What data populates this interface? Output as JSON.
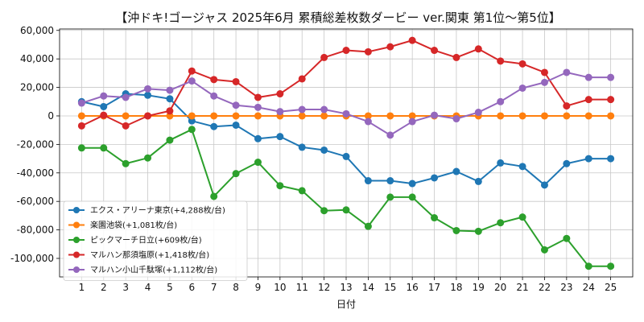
{
  "chart_data": {
    "type": "line",
    "title": "【沖ドキ!ゴージャス 2025年6月 累積総差枚数ダービー ver.関東 第1位～第5位】",
    "xlabel": "日付",
    "ylabel": "",
    "x": [
      1,
      2,
      3,
      4,
      5,
      6,
      7,
      8,
      9,
      10,
      11,
      12,
      13,
      14,
      15,
      16,
      17,
      18,
      19,
      20,
      21,
      22,
      23,
      24,
      25
    ],
    "xlim": [
      0,
      26
    ],
    "ylim": [
      -113000,
      61000
    ],
    "yticks": [
      60000,
      40000,
      20000,
      0,
      -20000,
      -40000,
      -60000,
      -80000,
      -100000
    ],
    "ytick_labels": [
      "60,000",
      "40,000",
      "20,000",
      "0",
      "-20,000",
      "-40,000",
      "-60,000",
      "-80,000",
      "-100,000"
    ],
    "xtick_labels": [
      "1",
      "2",
      "3",
      "4",
      "5",
      "6",
      "7",
      "8",
      "9",
      "10",
      "11",
      "12",
      "13",
      "14",
      "15",
      "16",
      "17",
      "18",
      "19",
      "20",
      "21",
      "22",
      "23",
      "24",
      "25"
    ],
    "grid": true,
    "legend_position": "bottom-left",
    "series": [
      {
        "name": "エクス・アリーナ東京(+4,288枚/台)",
        "color": "#1f77b4",
        "values": [
          10000,
          6500,
          15500,
          14500,
          12000,
          -3500,
          -7500,
          -6500,
          -16000,
          -14500,
          -22000,
          -24000,
          -28500,
          -45500,
          -45500,
          -47500,
          -43500,
          -39000,
          -46000,
          -33000,
          -35500,
          -48500,
          -33500,
          -30000,
          -30000
        ]
      },
      {
        "name": "楽園池袋(+1,081枚/台)",
        "color": "#ff7f0e",
        "values": [
          0,
          0,
          0,
          0,
          0,
          0,
          0,
          0,
          0,
          0,
          0,
          0,
          0,
          0,
          0,
          0,
          0,
          0,
          0,
          0,
          0,
          0,
          0,
          0,
          0
        ]
      },
      {
        "name": "ピックマーチ日立(+609枚/台)",
        "color": "#2ca02c",
        "values": [
          -22500,
          -22500,
          -33500,
          -29500,
          -17000,
          -9500,
          -56500,
          -40500,
          -32500,
          -49000,
          -52500,
          -66500,
          -66000,
          -77500,
          -57000,
          -57000,
          -71500,
          -80500,
          -81000,
          -75000,
          -71000,
          -94000,
          -86000,
          -105500,
          -105500
        ]
      },
      {
        "name": "マルハン那須塩原(+1,418枚/台)",
        "color": "#d62728",
        "values": [
          -7000,
          500,
          -7000,
          0,
          3500,
          31500,
          25500,
          24000,
          13000,
          15500,
          26000,
          41000,
          46000,
          45000,
          48500,
          53000,
          46000,
          41000,
          47000,
          38500,
          36500,
          30500,
          7000,
          11500,
          11500
        ]
      },
      {
        "name": "マルハン小山千駄塚(+1,112枚/台)",
        "color": "#9467bd",
        "values": [
          9000,
          14000,
          13000,
          19000,
          18000,
          24500,
          14000,
          7500,
          6000,
          3000,
          4500,
          4500,
          1500,
          -4000,
          -13500,
          -4000,
          500,
          -2000,
          2500,
          10000,
          19500,
          23500,
          30500,
          27000,
          27000
        ]
      }
    ]
  }
}
